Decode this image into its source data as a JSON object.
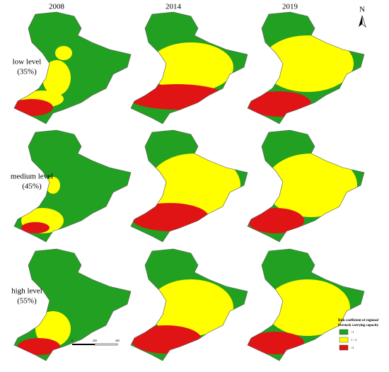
{
  "columns": [
    "2008",
    "2014",
    "2019"
  ],
  "rows": [
    {
      "level": "low level",
      "share": "(35%)"
    },
    {
      "level": "medium level",
      "share": "(45%)"
    },
    {
      "level": "high level",
      "share": "(55%)"
    }
  ],
  "north": "N",
  "legend": {
    "title": [
      "Risk coefficient of regional",
      "livestock carrying capacity"
    ],
    "items": [
      {
        "label": "<1",
        "color": "#22a022"
      },
      {
        "label": "1 ~ 2",
        "color": "#ffff00"
      },
      {
        "label": ">2",
        "color": "#e01414"
      }
    ]
  },
  "scale": [
    "0",
    "200",
    "400"
  ]
}
